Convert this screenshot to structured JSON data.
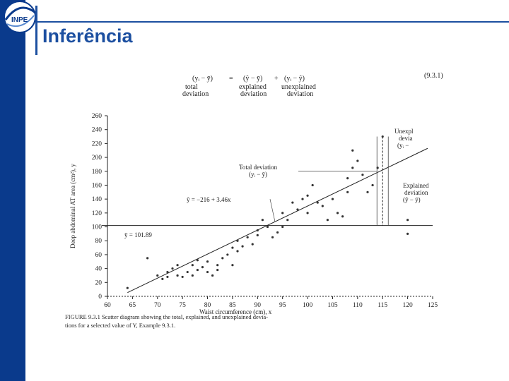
{
  "slide": {
    "title": "Inferência",
    "logo_text": "INPE",
    "colors": {
      "sidebar": "#0a3a8c",
      "title": "#1c4fa0",
      "ink": "#222222"
    }
  },
  "chart_data": {
    "type": "scatter",
    "equation": {
      "eq_index": "(9.3.1)",
      "lhs": "(yᵢ − ȳ)",
      "eq": "=",
      "mid": "(ŷ − ȳ)",
      "plus": "+",
      "rhs": "(yᵢ − ŷ)",
      "lhs_label": [
        "total",
        "deviation"
      ],
      "mid_label": [
        "explained",
        "deviation"
      ],
      "rhs_label": [
        "unexplained",
        "deviation"
      ]
    },
    "xlabel": "Waist circumference (cm), x",
    "ylabel": "Deep abdominal AT area (cm²), y",
    "xlim": [
      60,
      125
    ],
    "ylim": [
      0,
      260
    ],
    "xticks": [
      "60",
      "65",
      "70",
      "75",
      "80",
      "85",
      "90",
      "95",
      "100",
      "105",
      "110",
      "115",
      "120",
      "125"
    ],
    "yticks": [
      "0",
      "20",
      "40",
      "60",
      "80",
      "100",
      "120",
      "140",
      "160",
      "180",
      "200",
      "220",
      "240",
      "260"
    ],
    "mean_y": 101.89,
    "mean_label": "ȳ = 101.89",
    "regression": {
      "intercept": -216,
      "slope": 3.46,
      "label": "ŷ = −216 + 3.46x"
    },
    "annotations": {
      "total": [
        "Total deviation",
        "(yᵢ − ȳ)"
      ],
      "unexplained": [
        "Unexpl",
        "devia",
        "(yᵢ −"
      ],
      "explained": [
        "Explained",
        "deviation",
        "(ŷ − ȳ)"
      ]
    },
    "caption_line1": "FIGURE 9.3.1  Scatter diagram showing the total, explained, and unexplained devia-",
    "caption_line2": "tions for a selected value of Y, Example 9.3.1.",
    "points": [
      [
        64,
        12
      ],
      [
        68,
        55
      ],
      [
        70,
        30
      ],
      [
        71,
        25
      ],
      [
        72,
        35
      ],
      [
        72,
        28
      ],
      [
        73,
        40
      ],
      [
        74,
        30
      ],
      [
        74,
        45
      ],
      [
        75,
        28
      ],
      [
        76,
        35
      ],
      [
        77,
        30
      ],
      [
        77,
        45
      ],
      [
        78,
        38
      ],
      [
        78,
        52
      ],
      [
        79,
        42
      ],
      [
        80,
        35
      ],
      [
        80,
        50
      ],
      [
        81,
        30
      ],
      [
        82,
        45
      ],
      [
        82,
        38
      ],
      [
        83,
        55
      ],
      [
        84,
        60
      ],
      [
        85,
        45
      ],
      [
        85,
        70
      ],
      [
        86,
        65
      ],
      [
        86,
        80
      ],
      [
        87,
        72
      ],
      [
        88,
        85
      ],
      [
        89,
        75
      ],
      [
        90,
        95
      ],
      [
        90,
        88
      ],
      [
        91,
        110
      ],
      [
        92,
        100
      ],
      [
        93,
        85
      ],
      [
        94,
        92
      ],
      [
        95,
        120
      ],
      [
        95,
        100
      ],
      [
        96,
        110
      ],
      [
        97,
        135
      ],
      [
        98,
        125
      ],
      [
        99,
        140
      ],
      [
        100,
        120
      ],
      [
        100,
        145
      ],
      [
        101,
        160
      ],
      [
        102,
        135
      ],
      [
        103,
        130
      ],
      [
        104,
        110
      ],
      [
        105,
        140
      ],
      [
        106,
        120
      ],
      [
        107,
        115
      ],
      [
        108,
        150
      ],
      [
        108,
        170
      ],
      [
        109,
        210
      ],
      [
        109,
        185
      ],
      [
        110,
        195
      ],
      [
        111,
        175
      ],
      [
        112,
        150
      ],
      [
        113,
        160
      ],
      [
        114,
        185
      ],
      [
        115,
        230
      ],
      [
        120,
        90
      ],
      [
        120,
        110
      ]
    ]
  }
}
